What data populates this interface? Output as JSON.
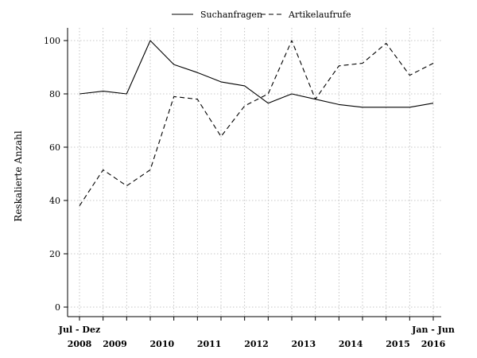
{
  "chart_data": {
    "type": "line",
    "ylabel": "Reskalierte Anzahl",
    "xlabel": "",
    "ylim": [
      0,
      100
    ],
    "yticks": [
      0,
      20,
      40,
      60,
      80,
      100
    ],
    "grid": true,
    "legend_position": "top-center",
    "x": [
      "Jul - Dez 2008",
      "Jan - Jun 2009",
      "Jul - Dez 2009",
      "Jan - Jun 2010",
      "Jul - Dez 2010",
      "Jan - Jun 2011",
      "Jul - Dez 2011",
      "Jan - Jun 2012",
      "Jul - Dez 2012",
      "Jan - Jun 2013",
      "Jul - Dez 2013",
      "Jan - Jun 2014",
      "Jul - Dez 2014",
      "Jan - Jun 2015",
      "Jul - Dez 2015",
      "Jan - Jun 2016"
    ],
    "first_period_label": "Jul - Dez",
    "last_period_label": "Jan - Jun",
    "year_labels": [
      {
        "text": "2008",
        "index": 0
      },
      {
        "text": "2009",
        "index": 1.5
      },
      {
        "text": "2010",
        "index": 3.5
      },
      {
        "text": "2011",
        "index": 5.5
      },
      {
        "text": "2012",
        "index": 7.5
      },
      {
        "text": "2013",
        "index": 9.5
      },
      {
        "text": "2014",
        "index": 11.5
      },
      {
        "text": "2015",
        "index": 13.5
      },
      {
        "text": "2016",
        "index": 15
      }
    ],
    "series": [
      {
        "name": "Suchanfragen",
        "style": "solid",
        "values": [
          80,
          81,
          80,
          100,
          91,
          88,
          84.5,
          83,
          76.5,
          80,
          78,
          76,
          75,
          75,
          75,
          76.5
        ]
      },
      {
        "name": "Artikelaufrufe",
        "style": "dashed",
        "values": [
          38,
          51.5,
          45.5,
          51.5,
          79,
          78,
          64,
          75.5,
          80,
          100,
          78,
          90.5,
          91.5,
          99,
          87,
          91.5
        ]
      }
    ]
  }
}
